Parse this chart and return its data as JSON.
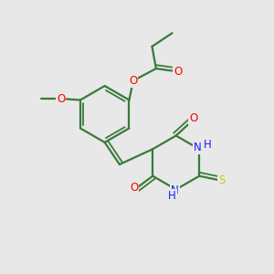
{
  "bg_color": "#e8e8e8",
  "bond_color": "#3a7a3a",
  "bond_width": 1.6,
  "atom_colors": {
    "O": "#ff0000",
    "N": "#1a1aff",
    "S": "#cccc00",
    "C": "#3a7a3a"
  },
  "font_size": 8.5,
  "fig_size": [
    3.0,
    3.0
  ],
  "dpi": 100
}
